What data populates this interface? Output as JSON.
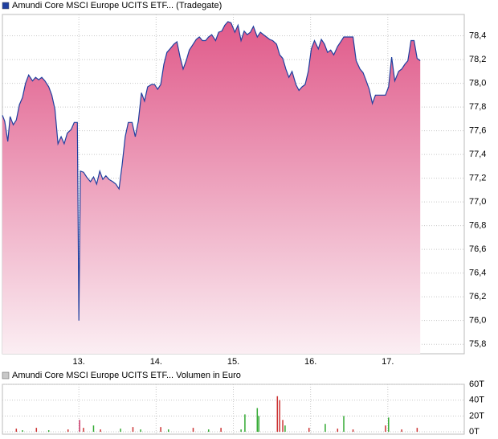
{
  "chart_data": [
    {
      "type": "area",
      "legend": "Amundi Core MSCI Europe UCITS ETF... (Tradegate)",
      "color": "#1f3f9f",
      "x": [
        12.01,
        12.04,
        12.08,
        12.11,
        12.15,
        12.19,
        12.23,
        12.27,
        12.31,
        12.35,
        12.4,
        12.44,
        12.48,
        12.52,
        12.56,
        12.61,
        12.65,
        12.69,
        12.73,
        12.77,
        12.81,
        12.85,
        12.9,
        12.94,
        12.98,
        13.0,
        13.02,
        13.06,
        13.1,
        13.15,
        13.19,
        13.23,
        13.27,
        13.31,
        13.35,
        13.39,
        13.44,
        13.48,
        13.52,
        13.56,
        13.6,
        13.64,
        13.69,
        13.73,
        13.77,
        13.81,
        13.85,
        13.89,
        13.94,
        13.98,
        14.02,
        14.06,
        14.1,
        14.14,
        14.18,
        14.23,
        14.27,
        14.31,
        14.35,
        14.39,
        14.43,
        14.48,
        14.52,
        14.56,
        14.6,
        14.64,
        14.68,
        14.72,
        14.77,
        14.81,
        14.85,
        14.89,
        14.93,
        14.97,
        15.02,
        15.06,
        15.1,
        15.14,
        15.18,
        15.22,
        15.26,
        15.31,
        15.35,
        15.39,
        15.43,
        15.47,
        15.51,
        15.56,
        15.6,
        15.64,
        15.68,
        15.72,
        15.76,
        15.81,
        15.85,
        15.89,
        15.93,
        15.97,
        16.01,
        16.05,
        16.1,
        16.14,
        16.18,
        16.22,
        16.26,
        16.3,
        16.35,
        16.39,
        16.43,
        16.47,
        16.51,
        16.55,
        16.59,
        16.64,
        16.68,
        16.72,
        16.76,
        16.8,
        16.84,
        16.89,
        16.93,
        16.97,
        17.01,
        17.05,
        17.09,
        17.14,
        17.18,
        17.22,
        17.26,
        17.3,
        17.34,
        17.38,
        17.42
      ],
      "values": [
        77.73,
        77.68,
        77.51,
        77.72,
        77.65,
        77.69,
        77.82,
        77.88,
        78.0,
        78.07,
        78.02,
        78.05,
        78.03,
        78.05,
        78.02,
        77.97,
        77.9,
        77.78,
        77.49,
        77.55,
        77.49,
        77.58,
        77.61,
        77.67,
        77.67,
        76.0,
        77.26,
        77.25,
        77.21,
        77.17,
        77.21,
        77.15,
        77.26,
        77.19,
        77.22,
        77.19,
        77.17,
        77.15,
        77.11,
        77.31,
        77.55,
        77.67,
        77.67,
        77.55,
        77.68,
        77.92,
        77.85,
        77.97,
        77.99,
        77.99,
        77.95,
        77.99,
        78.16,
        78.26,
        78.29,
        78.33,
        78.35,
        78.22,
        78.12,
        78.19,
        78.28,
        78.33,
        78.37,
        78.39,
        78.36,
        78.36,
        78.39,
        78.41,
        78.36,
        78.43,
        78.44,
        78.49,
        78.52,
        78.51,
        78.43,
        78.49,
        78.36,
        78.44,
        78.41,
        78.43,
        78.48,
        78.39,
        78.43,
        78.41,
        78.39,
        78.37,
        78.36,
        78.33,
        78.24,
        78.21,
        78.12,
        78.05,
        78.1,
        77.99,
        77.94,
        77.97,
        77.99,
        78.1,
        78.29,
        78.36,
        78.29,
        78.37,
        78.33,
        78.26,
        78.28,
        78.24,
        78.31,
        78.35,
        78.39,
        78.39,
        78.39,
        78.39,
        78.19,
        78.12,
        78.09,
        78.02,
        77.95,
        77.83,
        77.9,
        77.9,
        77.9,
        77.9,
        77.97,
        78.22,
        78.02,
        78.1,
        78.12,
        78.16,
        78.19,
        78.36,
        78.36,
        78.21,
        78.19
      ],
      "xlim": [
        12.01,
        17.99
      ],
      "xticks": [
        {
          "value": 13,
          "label": "13."
        },
        {
          "value": 14,
          "label": "14."
        },
        {
          "value": 15,
          "label": "15."
        },
        {
          "value": 16,
          "label": "16."
        },
        {
          "value": 17,
          "label": "17."
        }
      ],
      "ylim": [
        75.72,
        78.58
      ],
      "yticks": [
        {
          "value": 75.8,
          "label": "75,8"
        },
        {
          "value": 76.0,
          "label": "76,0"
        },
        {
          "value": 76.2,
          "label": "76,2"
        },
        {
          "value": 76.4,
          "label": "76,4"
        },
        {
          "value": 76.6,
          "label": "76,6"
        },
        {
          "value": 76.8,
          "label": "76,8"
        },
        {
          "value": 77.0,
          "label": "77,0"
        },
        {
          "value": 77.2,
          "label": "77,2"
        },
        {
          "value": 77.4,
          "label": "77,4"
        },
        {
          "value": 77.6,
          "label": "77,6"
        },
        {
          "value": 77.8,
          "label": "77,8"
        },
        {
          "value": 78.0,
          "label": "78,0"
        },
        {
          "value": 78.2,
          "label": "78,2"
        },
        {
          "value": 78.4,
          "label": "78,4"
        }
      ],
      "grid": true
    },
    {
      "type": "bar",
      "legend": "Amundi Core MSCI Europe UCITS ETF... Volumen in Euro",
      "legend_color": "#c8c8c8",
      "x": [
        12.19,
        12.27,
        12.45,
        12.61,
        12.86,
        13.01,
        13.06,
        13.19,
        13.28,
        13.54,
        13.7,
        13.8,
        14.06,
        14.16,
        14.48,
        14.68,
        14.84,
        15.1,
        15.15,
        15.31,
        15.33,
        15.57,
        15.6,
        15.64,
        15.67,
        15.98,
        16.19,
        16.35,
        16.43,
        16.55,
        16.97,
        17.01,
        17.18,
        17.38
      ],
      "values": [
        4,
        2,
        5,
        2,
        3,
        15,
        5,
        8,
        3,
        4,
        6,
        3,
        6,
        3,
        5,
        3,
        5,
        3,
        22,
        30,
        20,
        45,
        40,
        15,
        8,
        5,
        10,
        4,
        20,
        3,
        8,
        18,
        3,
        5
      ],
      "colors": [
        "#cc3333",
        "#33aa33",
        "#cc3333",
        "#33aa33",
        "#cc3333",
        "#cc3366",
        "#cc3333",
        "#33aa33",
        "#cc3333",
        "#33aa33",
        "#cc3333",
        "#33aa33",
        "#cc3333",
        "#33aa33",
        "#cc3333",
        "#33aa33",
        "#cc3333",
        "#33aa33",
        "#33aa33",
        "#33aa33",
        "#33aa33",
        "#cc3333",
        "#cc3333",
        "#cc3333",
        "#33aa33",
        "#cc3333",
        "#33aa33",
        "#cc3333",
        "#33aa33",
        "#cc3333",
        "#cc3333",
        "#33aa33",
        "#cc3333",
        "#cc3333"
      ],
      "xlim": [
        12.01,
        17.99
      ],
      "ylim": [
        -3,
        60
      ],
      "yticks": [
        {
          "value": 0,
          "label": "0T"
        },
        {
          "value": 20,
          "label": "20T"
        },
        {
          "value": 40,
          "label": "40T"
        },
        {
          "value": 60,
          "label": "60T"
        }
      ],
      "grid": true
    }
  ]
}
